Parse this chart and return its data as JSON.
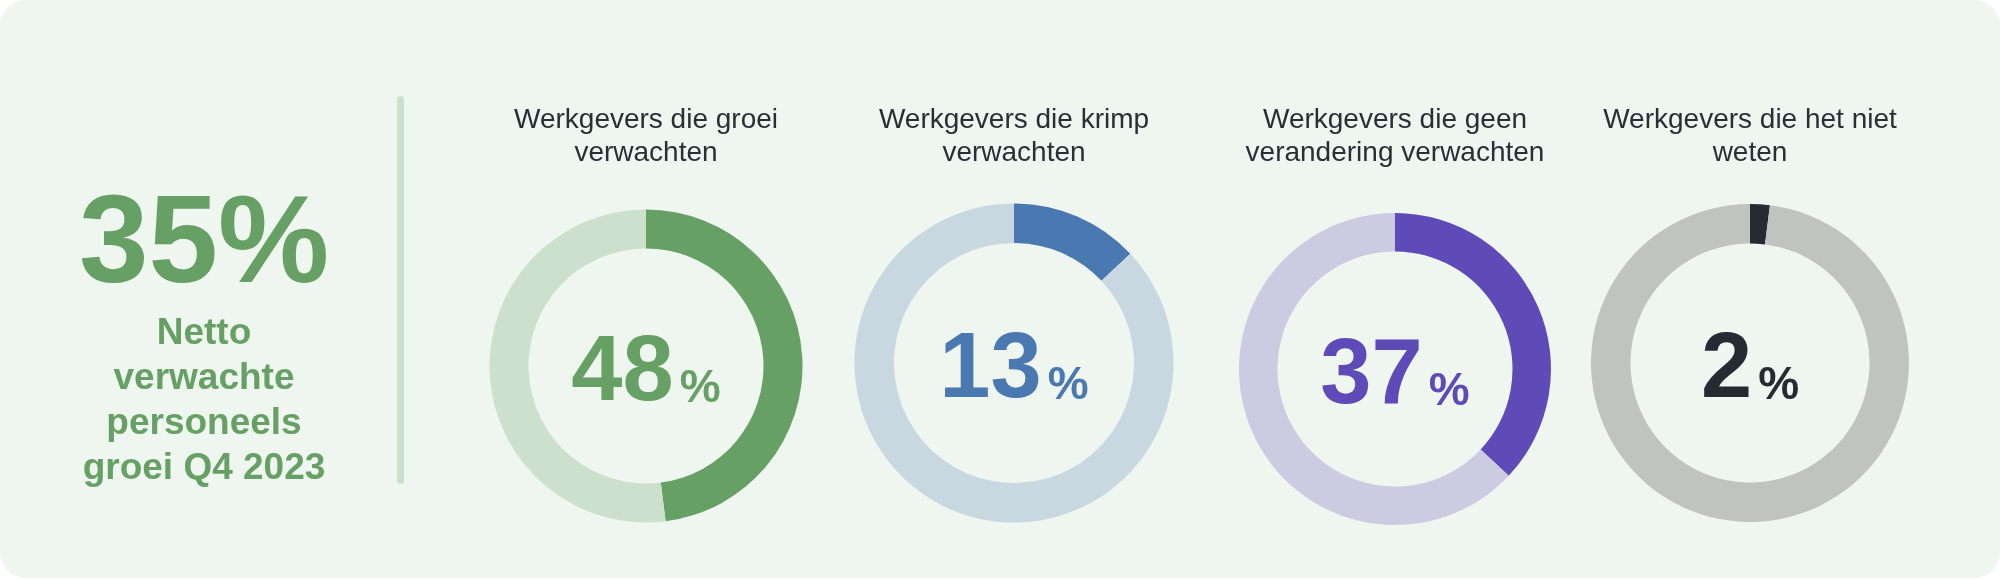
{
  "chart_data": [
    {
      "type": "other",
      "title": "35%",
      "subtitle": "Netto verwachte personeels groei Q4 2023",
      "color": "#67a064"
    },
    {
      "type": "donut",
      "title": "Werkgevers die groei verwachten",
      "categories": [
        null,
        null
      ],
      "values": [
        48,
        52
      ],
      "colors": [
        "#67a064",
        "#cde0cd"
      ],
      "annotations": [
        "48%"
      ]
    },
    {
      "type": "donut",
      "title": "Werkgevers die krimp verwachten",
      "categories": [
        null,
        null
      ],
      "values": [
        13,
        87
      ],
      "colors": [
        "#4a78b0",
        "#c8d7e0"
      ],
      "annotations": [
        "13%"
      ]
    },
    {
      "type": "donut",
      "title": "Werkgevers die geen verandering verwachten",
      "categories": [
        null,
        null
      ],
      "values": [
        37,
        63
      ],
      "colors": [
        "#5e4bb7",
        "#cbcbe2"
      ],
      "annotations": [
        "37%"
      ]
    },
    {
      "type": "donut",
      "title": "Werkgevers die het niet weten",
      "categories": [
        null,
        null
      ],
      "values": [
        2,
        98
      ],
      "colors": [
        "#262a32",
        "#bfc4bf"
      ],
      "annotations": [
        "2%"
      ]
    }
  ]
}
